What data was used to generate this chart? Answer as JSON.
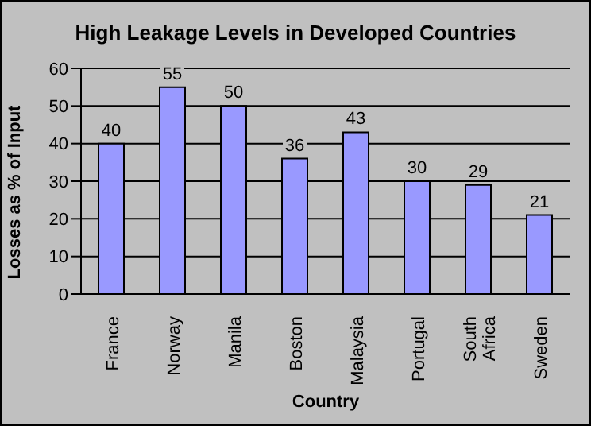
{
  "chart_data": {
    "type": "bar",
    "title": "High Leakage Levels in Developed Countries",
    "xlabel": "Country",
    "ylabel": "Losses as % of Input",
    "categories": [
      "France",
      "Norway",
      "Manila",
      "Boston",
      "Malaysia",
      "Portugal",
      "South Africa",
      "Sweden"
    ],
    "values": [
      40,
      55,
      50,
      36,
      43,
      30,
      29,
      21
    ],
    "color": "#9999ff",
    "ylim": [
      0,
      60
    ],
    "yticks": [
      0,
      10,
      20,
      30,
      40,
      50,
      60
    ],
    "grid": "y",
    "data_labels": true
  }
}
